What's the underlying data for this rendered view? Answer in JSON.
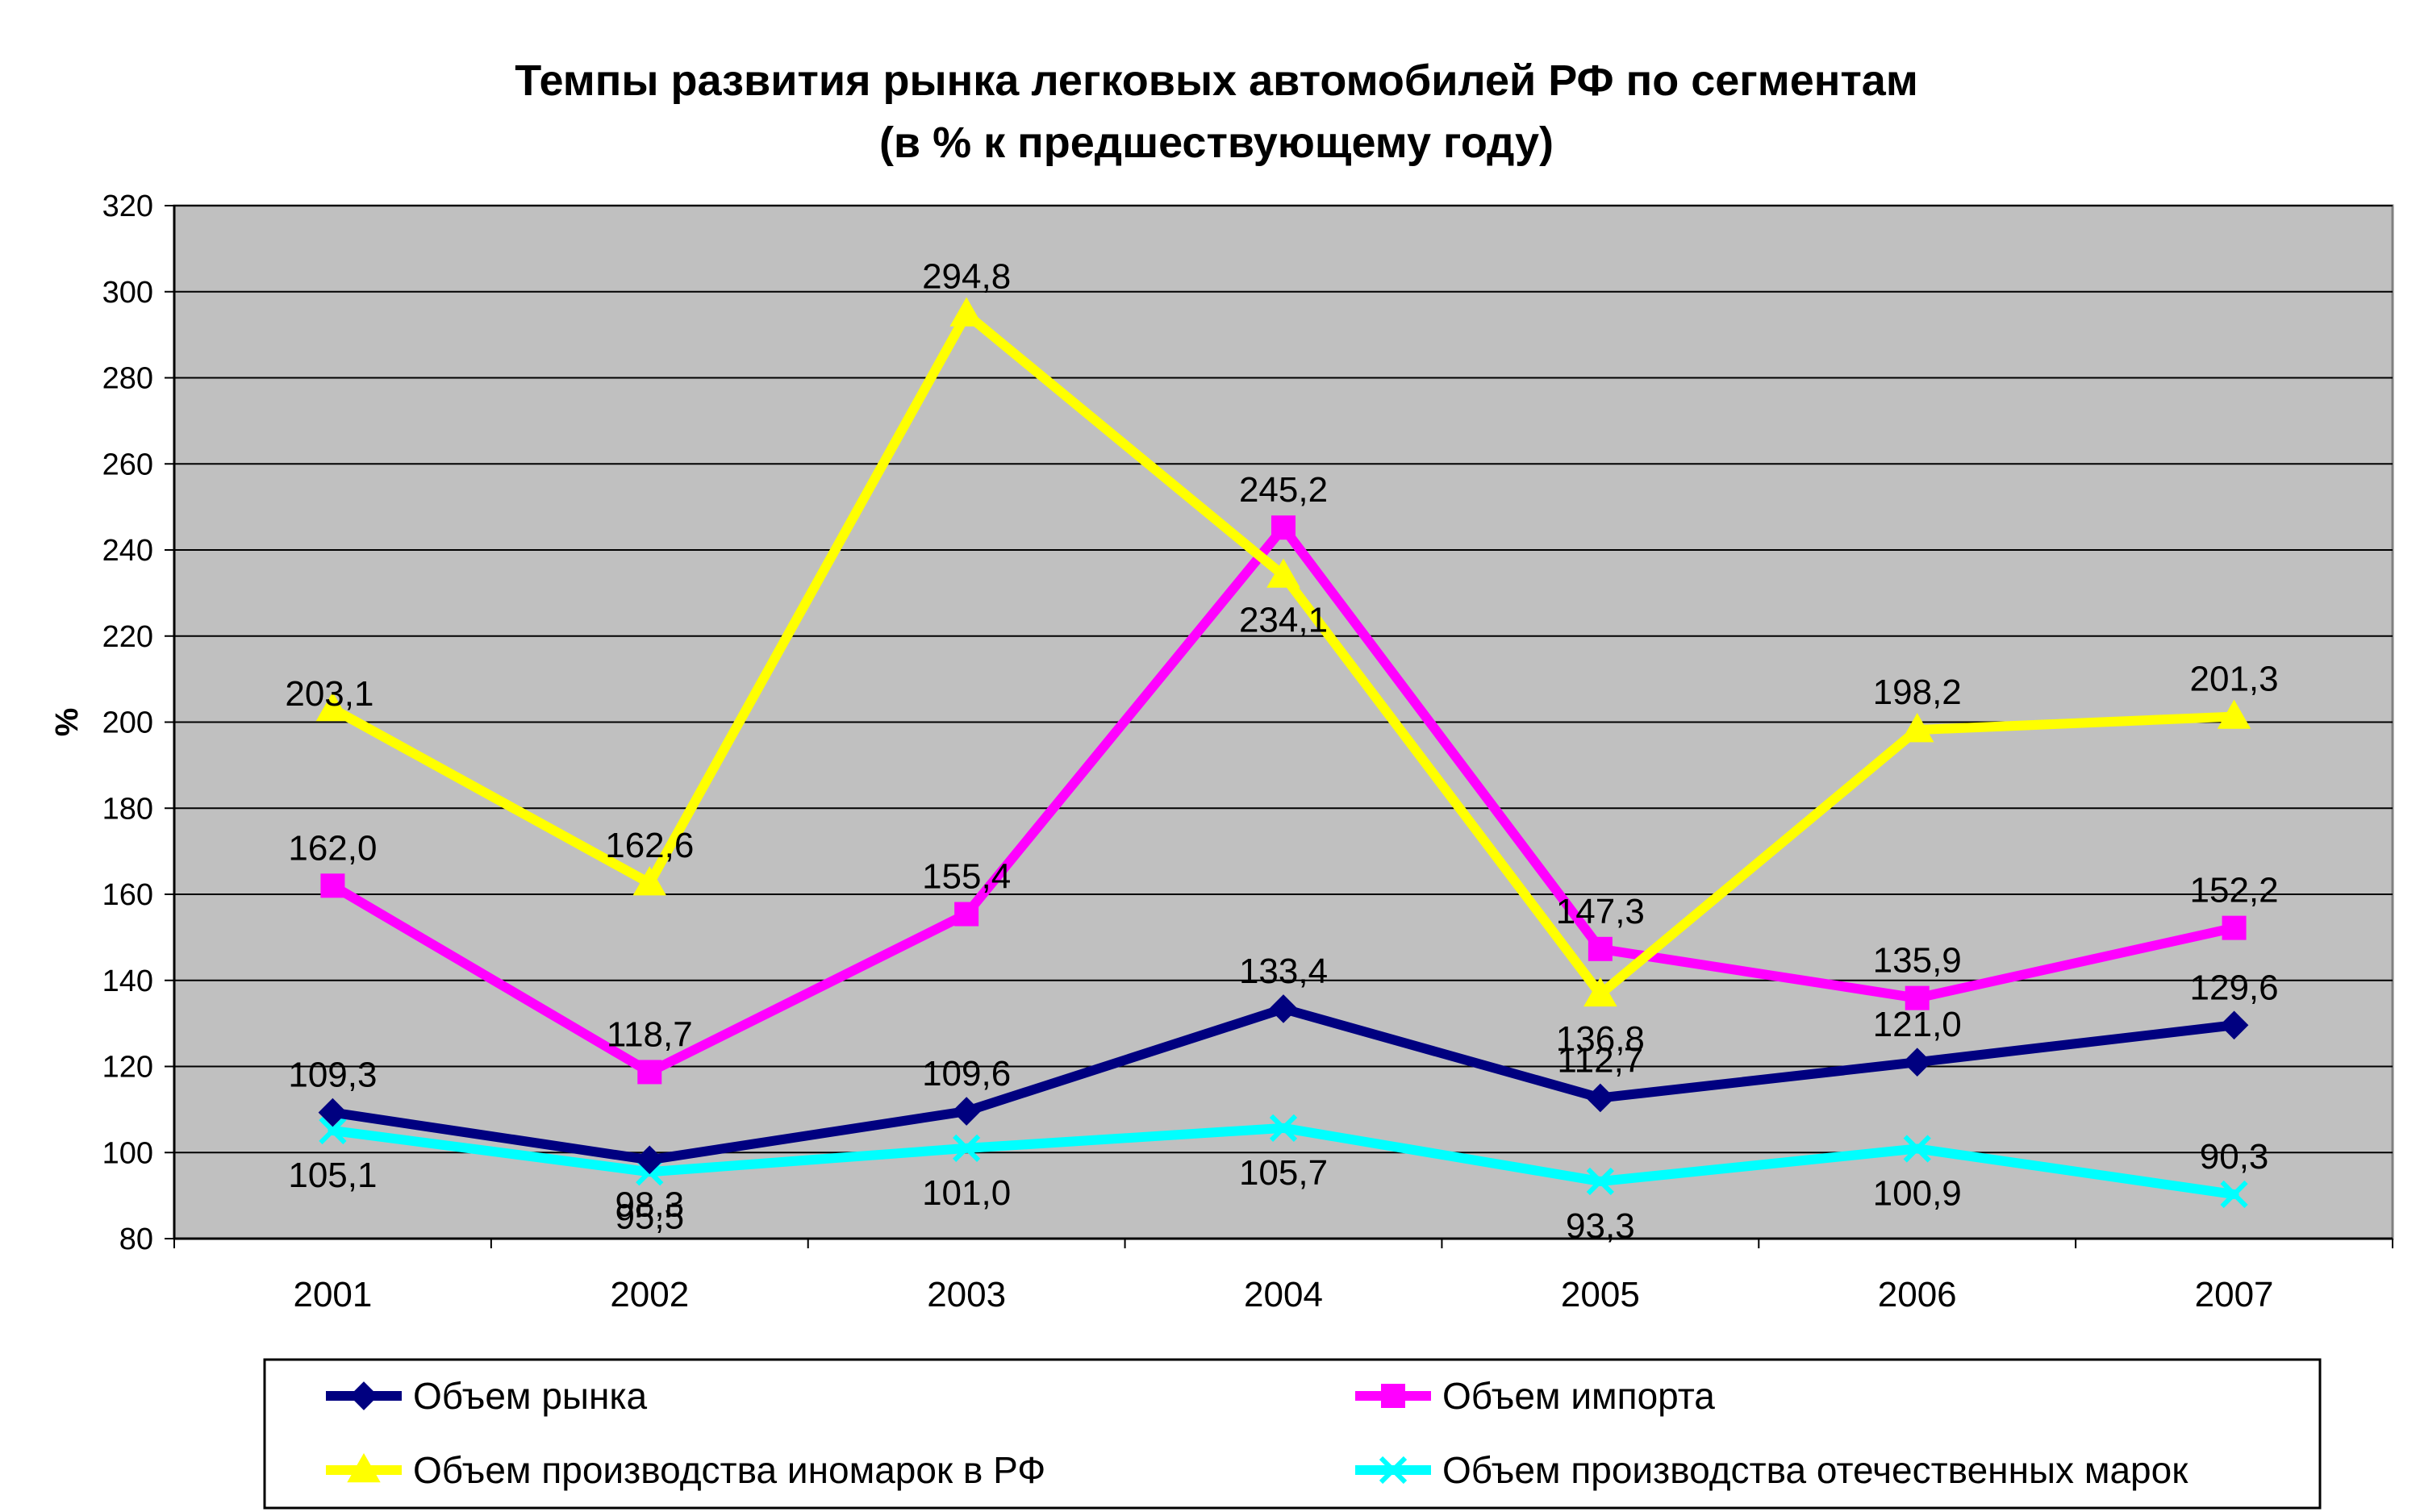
{
  "chart_data": {
    "type": "line",
    "title": "Темпы развития рынка легковых автомобилей РФ по сегментам",
    "subtitle": "(в % к предшествующему году)",
    "xlabel": "",
    "ylabel": "%",
    "ylim": [
      80,
      320
    ],
    "yticks": [
      80,
      100,
      120,
      140,
      160,
      180,
      200,
      220,
      240,
      260,
      280,
      300,
      320
    ],
    "categories": [
      "2001",
      "2002",
      "2003",
      "2004",
      "2005",
      "2006",
      "2007"
    ],
    "grid": true,
    "legend_position": "bottom",
    "series": [
      {
        "name": "Объем рынка",
        "color": "#000080",
        "marker": "diamond",
        "values": [
          109.3,
          98.3,
          109.6,
          133.4,
          112.7,
          121.0,
          129.6
        ],
        "labels": [
          "109,3",
          "98,3",
          "109,6",
          "133,4",
          "112,7",
          "121,0",
          "129,6"
        ]
      },
      {
        "name": "Объем импорта",
        "color": "#FF00FF",
        "marker": "square",
        "values": [
          162.0,
          118.7,
          155.4,
          245.2,
          147.3,
          135.9,
          152.2
        ],
        "labels": [
          "162,0",
          "118,7",
          "155,4",
          "245,2",
          "147,3",
          "135,9",
          "152,2"
        ]
      },
      {
        "name": "Объем производства иномарок в РФ",
        "color": "#FFFF00",
        "marker": "triangle",
        "values": [
          203.1,
          162.6,
          294.8,
          234.1,
          136.8,
          198.2,
          201.3
        ],
        "labels": [
          "203,1",
          "162,6",
          "294,8",
          "234,1",
          "136,8",
          "198,2",
          "201,3"
        ]
      },
      {
        "name": "Объем производства отечественных марок",
        "color": "#00FFFF",
        "marker": "x",
        "values": [
          105.1,
          95.5,
          101.0,
          105.7,
          93.3,
          100.9,
          90.3
        ],
        "labels": [
          "105,1",
          "95,5",
          "101,0",
          "105,7",
          "93,3",
          "100,9",
          "90,3"
        ]
      }
    ],
    "plot_bg_color": "#C0C0C0"
  }
}
